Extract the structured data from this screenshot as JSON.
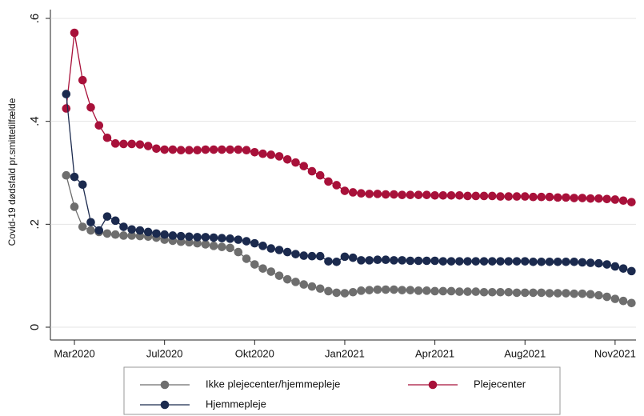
{
  "chart_data": {
    "type": "line",
    "y_label": "Covid-19 dødsfald pr.smittetilfælde",
    "categories": [
      null,
      "Mar2020",
      null,
      null,
      null,
      null,
      null,
      null,
      null,
      null,
      null,
      null,
      "Jul2020",
      null,
      null,
      null,
      null,
      null,
      null,
      null,
      null,
      null,
      null,
      "Okt2020",
      null,
      null,
      null,
      null,
      null,
      null,
      null,
      null,
      null,
      null,
      "Jan2021",
      null,
      null,
      null,
      null,
      null,
      null,
      null,
      null,
      null,
      null,
      "Apr2021",
      null,
      null,
      null,
      null,
      null,
      null,
      null,
      null,
      null,
      null,
      "Aug2021",
      null,
      null,
      null,
      null,
      null,
      null,
      null,
      null,
      null,
      null,
      "Nov2021",
      null,
      null
    ],
    "series": [
      {
        "name": "Ikke plejecenter/hjemmepleje",
        "color": "#6e6e6e",
        "values": [
          0.295,
          0.234,
          0.195,
          0.188,
          0.185,
          0.182,
          0.18,
          0.178,
          0.178,
          0.177,
          0.176,
          0.174,
          0.17,
          0.168,
          0.166,
          0.165,
          0.163,
          0.161,
          0.158,
          0.156,
          0.154,
          0.146,
          0.133,
          0.122,
          0.114,
          0.108,
          0.1,
          0.093,
          0.088,
          0.083,
          0.079,
          0.075,
          0.07,
          0.067,
          0.066,
          0.068,
          0.071,
          0.072,
          0.073,
          0.073,
          0.073,
          0.072,
          0.072,
          0.071,
          0.071,
          0.07,
          0.07,
          0.07,
          0.069,
          0.069,
          0.069,
          0.068,
          0.068,
          0.068,
          0.068,
          0.067,
          0.067,
          0.067,
          0.067,
          0.066,
          0.066,
          0.066,
          0.065,
          0.065,
          0.064,
          0.062,
          0.059,
          0.055,
          0.051,
          0.047
        ]
      },
      {
        "name": "Plejecenter",
        "color": "#a8113a",
        "values": [
          0.425,
          0.572,
          0.48,
          0.427,
          0.392,
          0.368,
          0.357,
          0.356,
          0.356,
          0.355,
          0.352,
          0.347,
          0.345,
          0.345,
          0.344,
          0.344,
          0.344,
          0.345,
          0.345,
          0.345,
          0.345,
          0.345,
          0.344,
          0.34,
          0.337,
          0.335,
          0.332,
          0.326,
          0.32,
          0.313,
          0.303,
          0.295,
          0.283,
          0.276,
          0.265,
          0.262,
          0.26,
          0.259,
          0.259,
          0.258,
          0.258,
          0.257,
          0.257,
          0.257,
          0.257,
          0.256,
          0.256,
          0.256,
          0.256,
          0.255,
          0.255,
          0.255,
          0.255,
          0.254,
          0.254,
          0.254,
          0.254,
          0.253,
          0.253,
          0.253,
          0.252,
          0.252,
          0.251,
          0.251,
          0.25,
          0.25,
          0.249,
          0.248,
          0.246,
          0.243
        ]
      },
      {
        "name": "Hjemmepleje",
        "color": "#1b2a4e",
        "values": [
          0.453,
          0.292,
          0.277,
          0.204,
          0.188,
          0.215,
          0.207,
          0.195,
          0.19,
          0.188,
          0.185,
          0.182,
          0.18,
          0.178,
          0.177,
          0.176,
          0.175,
          0.175,
          0.174,
          0.173,
          0.172,
          0.17,
          0.167,
          0.163,
          0.158,
          0.153,
          0.15,
          0.146,
          0.142,
          0.139,
          0.138,
          0.138,
          0.128,
          0.127,
          0.137,
          0.135,
          0.13,
          0.13,
          0.131,
          0.131,
          0.13,
          0.13,
          0.129,
          0.129,
          0.129,
          0.129,
          0.128,
          0.128,
          0.128,
          0.128,
          0.128,
          0.128,
          0.128,
          0.128,
          0.128,
          0.128,
          0.128,
          0.127,
          0.127,
          0.127,
          0.127,
          0.127,
          0.127,
          0.126,
          0.125,
          0.124,
          0.122,
          0.118,
          0.114,
          0.109
        ]
      }
    ],
    "ylim": [
      0,
      0.6
    ],
    "yticks": [
      {
        "value": 0,
        "label": "0"
      },
      {
        "value": 0.2,
        "label": ".2"
      },
      {
        "value": 0.4,
        "label": ".4"
      },
      {
        "value": 0.6,
        "label": ".6"
      }
    ],
    "grid": true,
    "legend": "bottom"
  }
}
